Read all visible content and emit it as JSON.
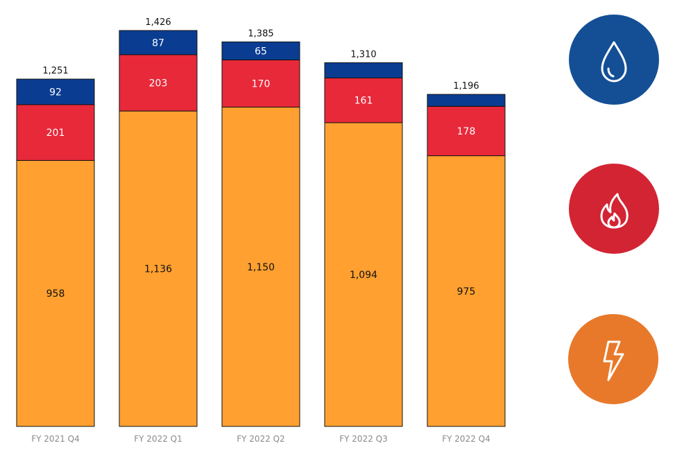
{
  "chart_data": {
    "type": "bar",
    "stacked": true,
    "categories": [
      "FY 2021 Q4",
      "FY 2022 Q1",
      "FY 2022 Q2",
      "FY 2022 Q3",
      "FY 2022 Q4"
    ],
    "series": [
      {
        "color": "#ffa030",
        "label_color": "#111111",
        "values": [
          958,
          1136,
          1150,
          1094,
          975
        ],
        "labels": [
          "958",
          "1,136",
          "1,150",
          "1,094",
          "975"
        ]
      },
      {
        "color": "#e8293a",
        "label_color": "#ffffff",
        "values": [
          201,
          203,
          170,
          161,
          178
        ],
        "labels": [
          "201",
          "203",
          "170",
          "161",
          "178"
        ]
      },
      {
        "color": "#0a3d91",
        "label_color": "#ffffff",
        "values": [
          92,
          87,
          65,
          55,
          43
        ],
        "labels": [
          "92",
          "87",
          "65",
          "",
          ""
        ]
      }
    ],
    "totals": [
      "1,251",
      "1,426",
      "1,385",
      "1,310",
      "1,196"
    ],
    "total_values": [
      1251,
      1426,
      1385,
      1310,
      1196
    ],
    "ylim": [
      0,
      1426
    ],
    "grid": false,
    "axis_visible": false
  },
  "legend": {
    "icons": [
      {
        "name": "water-drop-icon",
        "color": "#144f96"
      },
      {
        "name": "flame-icon",
        "color": "#d32434"
      },
      {
        "name": "lightning-bolt-icon",
        "color": "#e8792a"
      }
    ]
  }
}
